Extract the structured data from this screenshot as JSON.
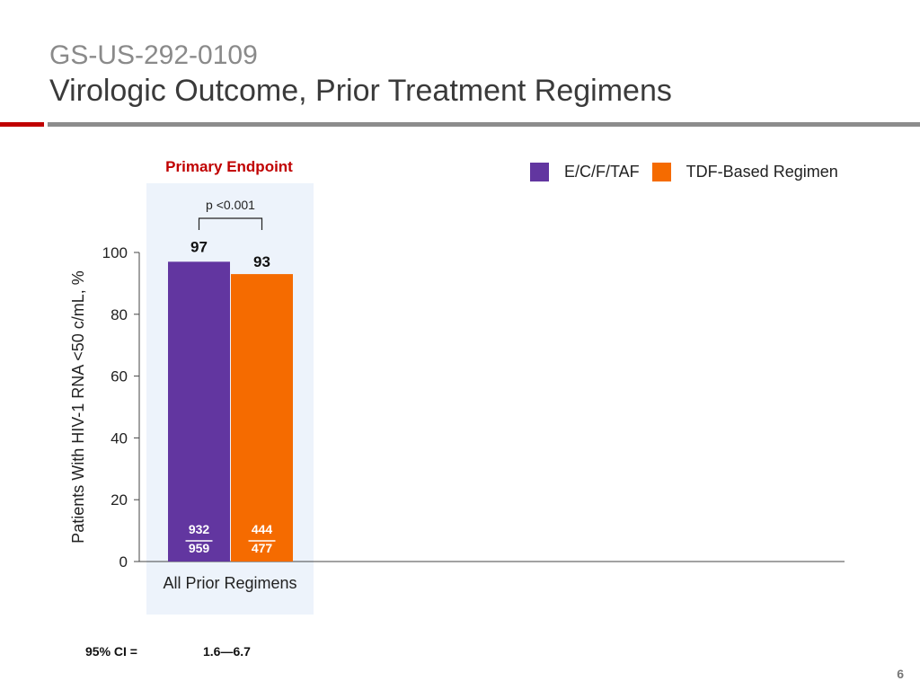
{
  "header": {
    "subtitle": "GS-US-292-0109",
    "title": "Virologic Outcome, Prior Treatment Regimens"
  },
  "colors": {
    "accent_red": "#c00000",
    "series1": "#6236a0",
    "series2": "#f56b00",
    "highlight": "#edf3fb"
  },
  "primary_endpoint": "Primary Endpoint",
  "p_value": "p <0.001",
  "ci": {
    "label": "95% CI =",
    "value": "1.6—6.7"
  },
  "page_number": "6",
  "chart_data": {
    "type": "bar",
    "title": "",
    "xlabel": "",
    "ylabel": "Patients With HIV-1 RNA <50 c/mL, %",
    "ylim": [
      0,
      100
    ],
    "yticks": [
      0,
      20,
      40,
      60,
      80,
      100
    ],
    "categories": [
      "All Prior Regimens"
    ],
    "legend_position": "top-right",
    "grid": false,
    "series": [
      {
        "name": "E/C/F/TAF",
        "values": [
          97
        ],
        "value_labels": [
          "97"
        ],
        "numerator": "932",
        "denominator": "959"
      },
      {
        "name": "TDF-Based Regimen",
        "values": [
          93
        ],
        "value_labels": [
          "93"
        ],
        "numerator": "444",
        "denominator": "477"
      }
    ]
  }
}
